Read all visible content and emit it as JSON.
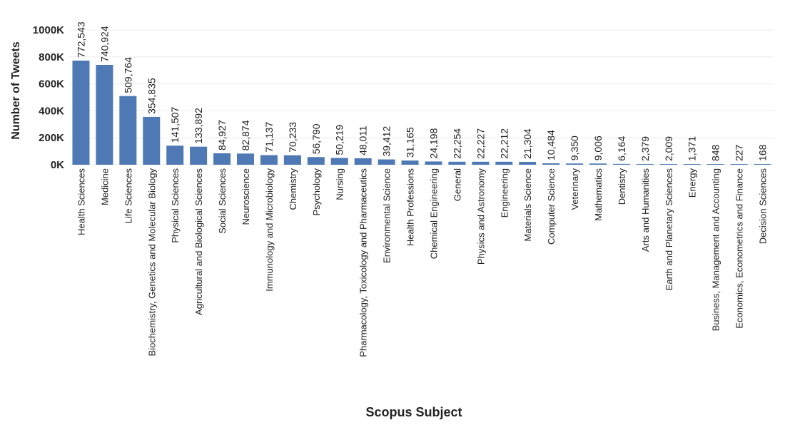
{
  "chart_data": {
    "type": "bar",
    "xlabel": "Scopus Subject",
    "ylabel": "Number of Tweets",
    "ylim": [
      0,
      1050000
    ],
    "yticks": [
      {
        "value": 0,
        "label": "0K"
      },
      {
        "value": 200000,
        "label": "200K"
      },
      {
        "value": 400000,
        "label": "400K"
      },
      {
        "value": 600000,
        "label": "600K"
      },
      {
        "value": 800000,
        "label": "800K"
      },
      {
        "value": 1000000,
        "label": "1000K"
      }
    ],
    "grid": true,
    "bar_color": "#4e79b5",
    "categories": [
      "Health Sciences",
      "Medicine",
      "Life Sciences",
      "Biochemistry,  Genetics and Molecular Biology",
      "Physical Sciences",
      "Agricultural and Biological Sciences",
      "Social Sciences",
      "Neuroscience",
      "Immunology and Microbiology",
      "Chemistry",
      "Psychology",
      "Nursing",
      "Pharmacology,  Toxicology and Pharmaceutics",
      "Environmental Science",
      "Health Professions",
      "Chemical Engineering",
      "General",
      "Physics and Astronomy",
      "Engineering",
      "Materials Science",
      "Computer Science",
      "Veterinary",
      "Mathematics",
      "Dentistry",
      "Arts and Humanities",
      "Earth and Planetary Sciences",
      "Energy",
      "Business,  Management and Accounting",
      "Economics,  Econometrics and Finance",
      "Decision Sciences"
    ],
    "values": [
      772543,
      740924,
      509764,
      354835,
      141507,
      133892,
      84927,
      82874,
      71137,
      70233,
      56790,
      50219,
      48011,
      39412,
      31165,
      24198,
      22254,
      22227,
      22212,
      21304,
      10484,
      9350,
      9006,
      6164,
      2379,
      2009,
      1371,
      848,
      227,
      168
    ],
    "value_labels": [
      "772,543",
      "740,924",
      "509,764",
      "354,835",
      "141,507",
      "133,892",
      "84,927",
      "82,874",
      "71,137",
      "70,233",
      "56,790",
      "50,219",
      "48,011",
      "39,412",
      "31,165",
      "24,198",
      "22,254",
      "22,227",
      "22,212",
      "21,304",
      "10,484",
      "9,350",
      "9,006",
      "6,164",
      "2,379",
      "2,009",
      "1,371",
      "848",
      "227",
      "168"
    ]
  }
}
